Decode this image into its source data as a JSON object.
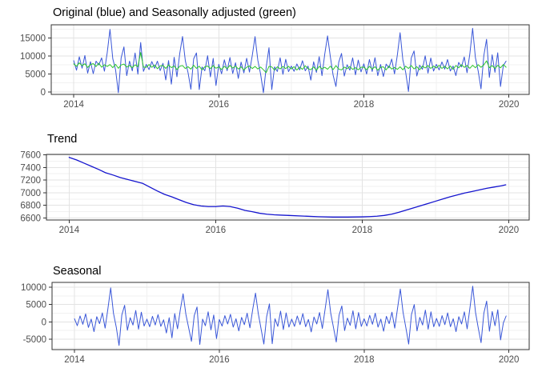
{
  "figure": {
    "background": "#FFFFFF",
    "description": "Time series decomposition figure with three stacked line-chart panels"
  },
  "colors": {
    "original_line": "#3A57D8",
    "adjusted_line": "#2CC52C",
    "trend_line": "#1414CE",
    "seasonal_line": "#3A57D8",
    "grid_major": "#E3E3E3",
    "grid_minor": "#F1F1F1",
    "panel_border": "#333333",
    "tick_mark": "#333333",
    "tick_label": "#4D4D4D",
    "title_text": "#000000",
    "background": "#FFFFFF"
  },
  "chart_data": [
    {
      "type": "line",
      "title": "Original (blue) and Seasonally adjusted (green)",
      "legend": "none",
      "grid": true,
      "x_ticks": [
        2014,
        2016,
        2018,
        2020
      ],
      "x_minor": [
        2015,
        2017,
        2019
      ],
      "y_ticks": [
        0,
        5000,
        10000,
        15000
      ],
      "y_minor": [
        2500,
        7500,
        12500,
        17500
      ],
      "xlim": [
        2013.69,
        2020.28
      ],
      "ylim": [
        -700,
        18700
      ],
      "series": [
        {
          "name": "Original",
          "color_key": "original_line",
          "derive": "trend + seasonal + remainder"
        },
        {
          "name": "Seasonally adjusted",
          "color_key": "adjusted_line",
          "derive": "trend + remainder"
        }
      ]
    },
    {
      "type": "line",
      "title": "Trend",
      "legend": "none",
      "grid": true,
      "x_ticks": [
        2014,
        2016,
        2018,
        2020
      ],
      "x_minor": [
        2015,
        2017,
        2019
      ],
      "y_ticks": [
        6600,
        6800,
        7000,
        7200,
        7400,
        7600
      ],
      "y_minor": [
        6700,
        6900,
        7100,
        7300,
        7500
      ],
      "xlim": [
        2013.69,
        2020.28
      ],
      "ylim": [
        6568,
        7607
      ],
      "series": [
        {
          "name": "Trend",
          "color_key": "trend_line",
          "derive": "trend keypoints"
        }
      ]
    },
    {
      "type": "line",
      "title": "Seasonal",
      "legend": "none",
      "grid": true,
      "x_ticks": [
        2014,
        2016,
        2018,
        2020
      ],
      "x_minor": [
        2015,
        2017,
        2019
      ],
      "y_ticks": [
        -5000,
        0,
        5000,
        10000
      ],
      "y_minor": [
        -7500,
        -2500,
        2500,
        7500
      ],
      "xlim": [
        2013.69,
        2020.28
      ],
      "ylim": [
        -8000,
        11400
      ],
      "series": [
        {
          "name": "Seasonal",
          "color_key": "seasonal_line",
          "derive": "seasonal"
        }
      ]
    }
  ],
  "components": {
    "x_start": 2014,
    "x_step_years": 0.0384615,
    "n_points": 156,
    "seasonal": [
      900,
      -1100,
      1700,
      -700,
      2300,
      -1600,
      800,
      -2800,
      1500,
      -500,
      2600,
      -1800,
      3800,
      9800,
      2500,
      -1500,
      -6800,
      2000,
      4800,
      -2400,
      1200,
      -900,
      3300,
      -2100,
      2800,
      -1200,
      800,
      -1400,
      1600,
      -900,
      2100,
      -1300,
      600,
      -3200,
      1200,
      -4600,
      2400,
      -2000,
      3500,
      8100,
      2200,
      -1700,
      -5600,
      1800,
      4300,
      -6500,
      800,
      -1100,
      2900,
      -2300,
      2000,
      -4800,
      700,
      -1200,
      1800,
      -600,
      2200,
      -1500,
      900,
      -2600,
      1300,
      -800,
      2500,
      -1700,
      3600,
      8300,
      2400,
      -2000,
      -6400,
      1500,
      5200,
      -6300,
      900,
      -1300,
      3100,
      -2200,
      2600,
      -1500,
      800,
      -1300,
      1700,
      -800,
      2400,
      -1400,
      700,
      -2900,
      1400,
      -600,
      2700,
      -1900,
      3700,
      9300,
      2600,
      -1600,
      -5800,
      1900,
      4600,
      -2500,
      1100,
      -1000,
      3200,
      -2000,
      2700,
      -1300,
      900,
      -1200,
      1900,
      -700,
      2500,
      -1500,
      800,
      -2700,
      1600,
      -500,
      2800,
      -1800,
      3900,
      9500,
      2700,
      -1700,
      -6400,
      2100,
      5000,
      -2600,
      1300,
      -900,
      3400,
      -2100,
      2900,
      -1400,
      1000,
      -1300,
      1800,
      -800,
      2600,
      -1400,
      900,
      -2800,
      1500,
      -600,
      2900,
      -2000,
      4000,
      10300,
      2800,
      -1800,
      -6000,
      2500,
      6000,
      -2700,
      3000,
      -1100,
      3500,
      -5200,
      -300,
      1700
    ],
    "remainder": [
      250,
      -400,
      550,
      -200,
      350,
      -650,
      150,
      450,
      -350,
      600,
      -500,
      200,
      -250,
      300,
      -550,
      400,
      -700,
      250,
      500,
      -300,
      150,
      -450,
      350,
      -150,
      3800,
      -250,
      -300,
      500,
      -250,
      400,
      -600,
      200,
      350,
      -450,
      550,
      -200,
      300,
      -700,
      250,
      450,
      -350,
      150,
      -500,
      600,
      -250,
      350,
      -650,
      200,
      400,
      -300,
      550,
      -200,
      200,
      -550,
      350,
      -300,
      600,
      -150,
      450,
      -400,
      250,
      -650,
      150,
      500,
      -200,
      400,
      -300,
      250,
      -500,
      -1300,
      450,
      300,
      -600,
      350,
      -250,
      450,
      -150,
      500,
      -250,
      400,
      -550,
      300,
      -350,
      650,
      -150,
      -450,
      350,
      -600,
      500,
      -200,
      250,
      -300,
      550,
      -400,
      700,
      -250,
      -500,
      300,
      -150,
      450,
      -350,
      150,
      -450,
      250,
      300,
      -450,
      500,
      -250,
      400,
      -600,
      200,
      350,
      -500,
      550,
      -300,
      150,
      -400,
      300,
      -550,
      450,
      -200,
      600,
      -350,
      250,
      -650,
      400,
      -150,
      500,
      -300,
      350,
      -200,
      550,
      -350,
      250,
      -500,
      300,
      -650,
      400,
      -250,
      600,
      -150,
      350,
      -450,
      400,
      -300,
      550,
      -200,
      450,
      1600,
      -350,
      250,
      -550,
      300,
      -400,
      500,
      -250
    ],
    "trend_keypoints_x": [
      2014.0,
      2014.1,
      2014.2,
      2014.3,
      2014.4,
      2014.5,
      2014.6,
      2014.7,
      2014.8,
      2014.9,
      2015.0,
      2015.1,
      2015.2,
      2015.3,
      2015.4,
      2015.5,
      2015.6,
      2015.7,
      2015.8,
      2015.9,
      2016.0,
      2016.1,
      2016.2,
      2016.3,
      2016.4,
      2016.5,
      2016.6,
      2016.7,
      2016.8,
      2016.9,
      2017.0,
      2017.2,
      2017.4,
      2017.6,
      2017.8,
      2018.0,
      2018.1,
      2018.2,
      2018.3,
      2018.4,
      2018.5,
      2018.6,
      2018.7,
      2018.8,
      2018.9,
      2019.0,
      2019.1,
      2019.2,
      2019.3,
      2019.4,
      2019.5,
      2019.6,
      2019.7,
      2019.8,
      2019.9,
      2019.96
    ],
    "trend_keypoints_y": [
      7560,
      7520,
      7470,
      7420,
      7370,
      7315,
      7280,
      7240,
      7210,
      7180,
      7150,
      7090,
      7030,
      6975,
      6935,
      6890,
      6845,
      6810,
      6790,
      6780,
      6780,
      6790,
      6780,
      6755,
      6720,
      6700,
      6675,
      6660,
      6650,
      6645,
      6640,
      6630,
      6620,
      6615,
      6615,
      6618,
      6622,
      6628,
      6640,
      6660,
      6690,
      6725,
      6760,
      6795,
      6830,
      6865,
      6900,
      6935,
      6965,
      6995,
      7020,
      7045,
      7070,
      7090,
      7110,
      7125
    ]
  }
}
